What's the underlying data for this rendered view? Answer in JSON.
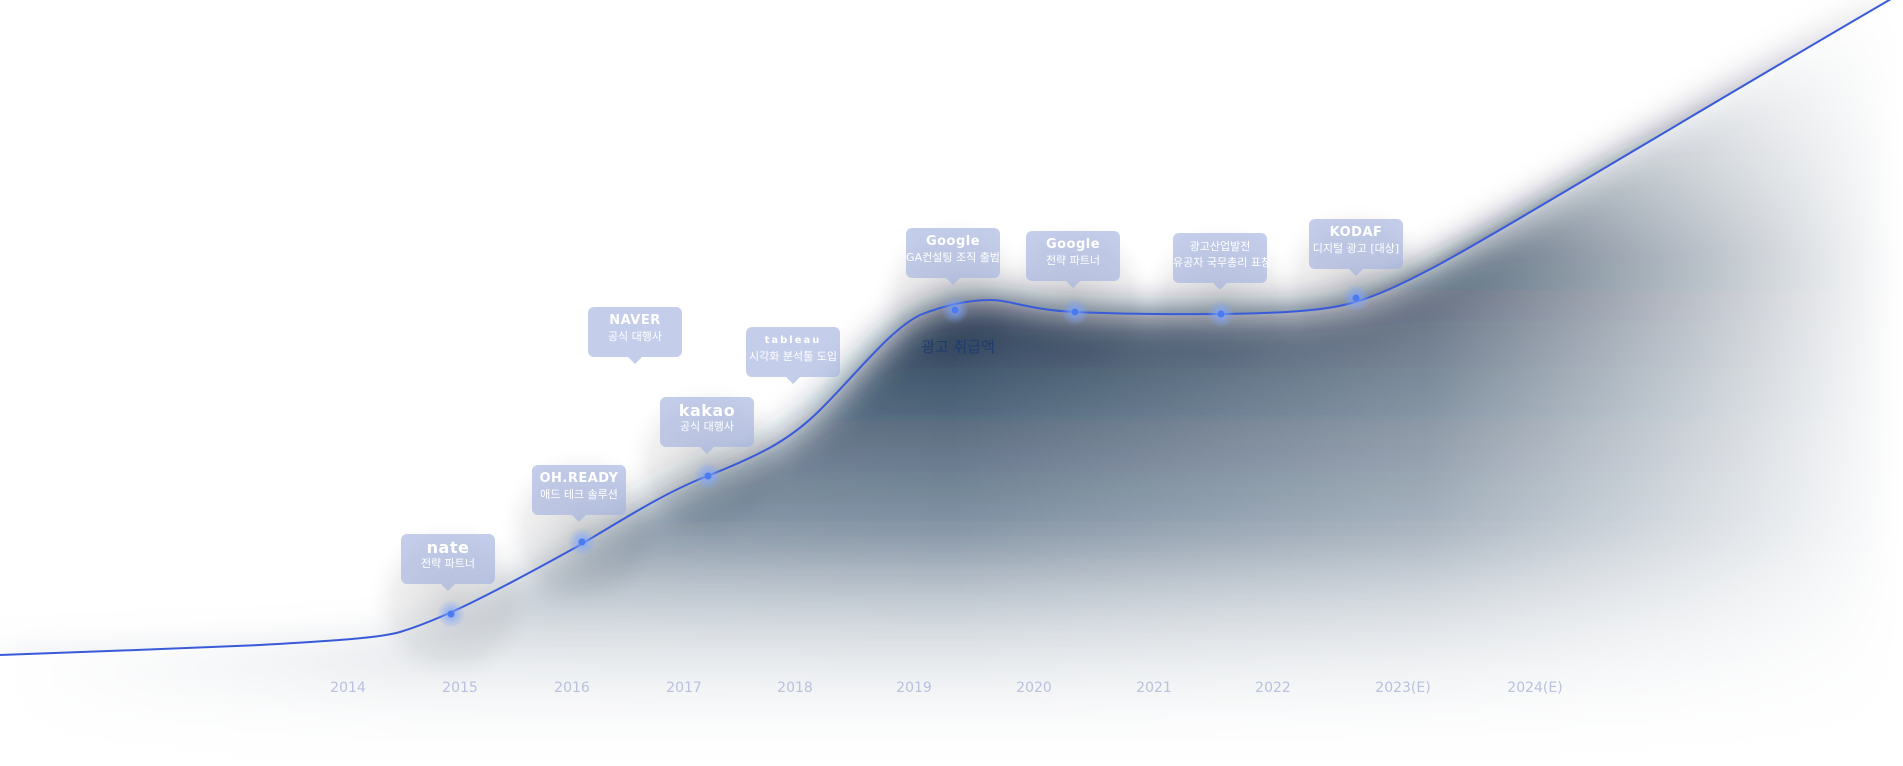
{
  "chart_data": {
    "type": "area",
    "series_label": "광고 취급액",
    "x_ticks": [
      "2014",
      "2015",
      "2016",
      "2017",
      "2018",
      "2019",
      "2020",
      "2021",
      "2022",
      "2023(E)",
      "2024(E)"
    ],
    "milestones": [
      {
        "year": "2015",
        "logo": "nate",
        "caption": "전략 파트너"
      },
      {
        "year": "2016",
        "logo": "OH.READY",
        "caption": "애드 테크 솔루션"
      },
      {
        "year": "2016",
        "logo": "NAVER",
        "caption": "공식 대행사"
      },
      {
        "year": "2017",
        "logo": "kakao",
        "caption": "공식 대행사"
      },
      {
        "year": "2018",
        "logo": "tableau",
        "caption": "시각화 분석툴 도입"
      },
      {
        "year": "2019",
        "logo": "Google",
        "caption": "GA컨설팅 조직 출범"
      },
      {
        "year": "2020",
        "logo": "Google",
        "caption": "전략 파트너"
      },
      {
        "year": "2021",
        "logo": "",
        "caption": "광고산업발전 유공자 국무총리 표창"
      },
      {
        "year": "2022",
        "logo": "KODAF",
        "caption": "디지털 광고 [대상]"
      }
    ],
    "grid": false,
    "legend": "none"
  },
  "colors": {
    "line": "#3a5bd9",
    "area_dark": "#041a36",
    "marker": "#4a7bf0",
    "bubble": "#a0b0de",
    "tick_text": "#b9c1de"
  }
}
